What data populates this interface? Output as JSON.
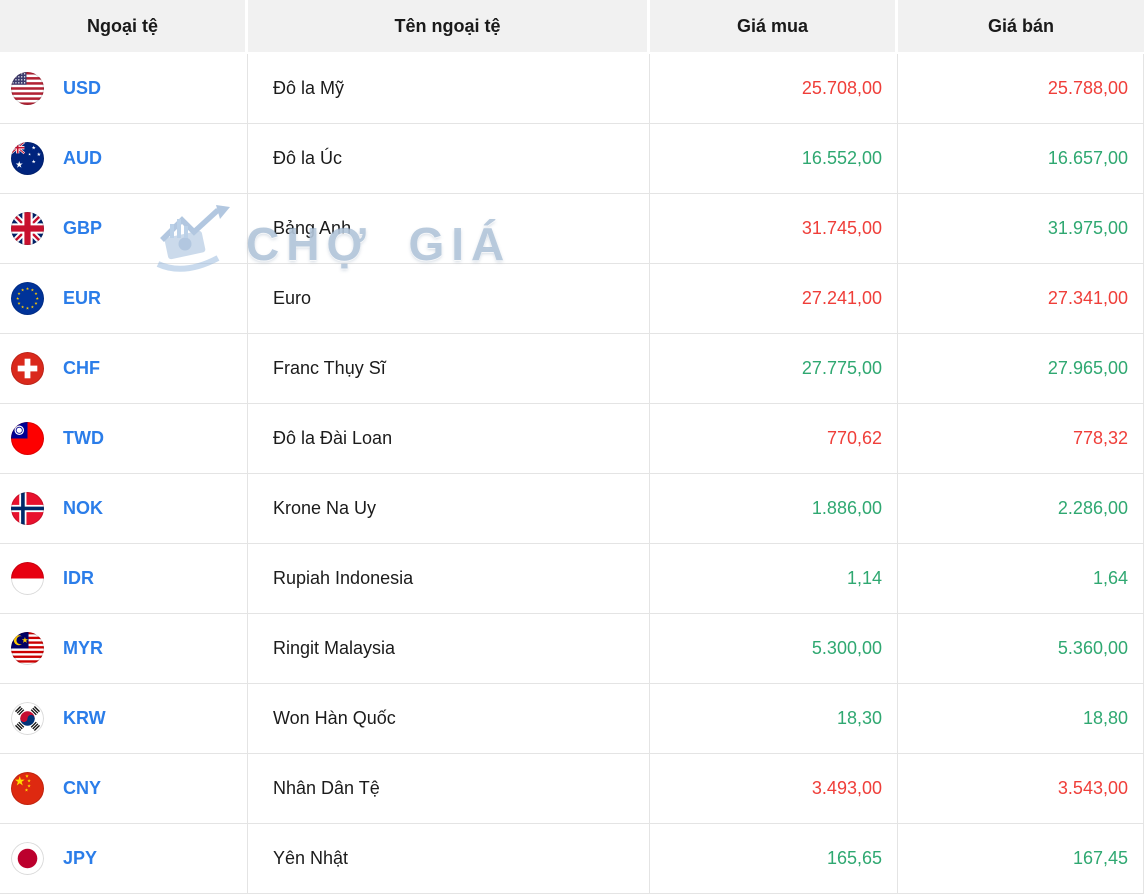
{
  "colors": {
    "code_blue": "#2b7de9",
    "price_red": "#ef3e39",
    "price_green": "#2fa871",
    "header_bg": "#f1f1f1",
    "row_border": "#e4e4e4"
  },
  "header": {
    "cols": [
      "Ngoại tệ",
      "Tên ngoại tệ",
      "Giá mua",
      "Giá bán"
    ]
  },
  "watermark": {
    "text": "CHỢ GIÁ"
  },
  "rows": [
    {
      "code": "USD",
      "flag": "us-flag-icon",
      "name": "Đô la Mỹ",
      "buy": "25.708,00",
      "buy_color": "red",
      "sell": "25.788,00",
      "sell_color": "red"
    },
    {
      "code": "AUD",
      "flag": "australia-flag-icon",
      "name": "Đô la Úc",
      "buy": "16.552,00",
      "buy_color": "green",
      "sell": "16.657,00",
      "sell_color": "green"
    },
    {
      "code": "GBP",
      "flag": "uk-flag-icon",
      "name": "Bảng Anh",
      "buy": "31.745,00",
      "buy_color": "red",
      "sell": "31.975,00",
      "sell_color": "green"
    },
    {
      "code": "EUR",
      "flag": "eu-flag-icon",
      "name": "Euro",
      "buy": "27.241,00",
      "buy_color": "red",
      "sell": "27.341,00",
      "sell_color": "red"
    },
    {
      "code": "CHF",
      "flag": "switzerland-flag-icon",
      "name": "Franc Thụy Sĩ",
      "buy": "27.775,00",
      "buy_color": "green",
      "sell": "27.965,00",
      "sell_color": "green"
    },
    {
      "code": "TWD",
      "flag": "taiwan-flag-icon",
      "name": "Đô la Đài Loan",
      "buy": "770,62",
      "buy_color": "red",
      "sell": "778,32",
      "sell_color": "red"
    },
    {
      "code": "NOK",
      "flag": "norway-flag-icon",
      "name": "Krone Na Uy",
      "buy": "1.886,00",
      "buy_color": "green",
      "sell": "2.286,00",
      "sell_color": "green"
    },
    {
      "code": "IDR",
      "flag": "indonesia-flag-icon",
      "name": "Rupiah Indonesia",
      "buy": "1,14",
      "buy_color": "green",
      "sell": "1,64",
      "sell_color": "green"
    },
    {
      "code": "MYR",
      "flag": "malaysia-flag-icon",
      "name": "Ringit Malaysia",
      "buy": "5.300,00",
      "buy_color": "green",
      "sell": "5.360,00",
      "sell_color": "green"
    },
    {
      "code": "KRW",
      "flag": "south-korea-flag-icon",
      "name": "Won Hàn Quốc",
      "buy": "18,30",
      "buy_color": "green",
      "sell": "18,80",
      "sell_color": "green"
    },
    {
      "code": "CNY",
      "flag": "china-flag-icon",
      "name": "Nhân Dân Tệ",
      "buy": "3.493,00",
      "buy_color": "red",
      "sell": "3.543,00",
      "sell_color": "red"
    },
    {
      "code": "JPY",
      "flag": "japan-flag-icon",
      "name": "Yên Nhật",
      "buy": "165,65",
      "buy_color": "green",
      "sell": "167,45",
      "sell_color": "green"
    }
  ]
}
